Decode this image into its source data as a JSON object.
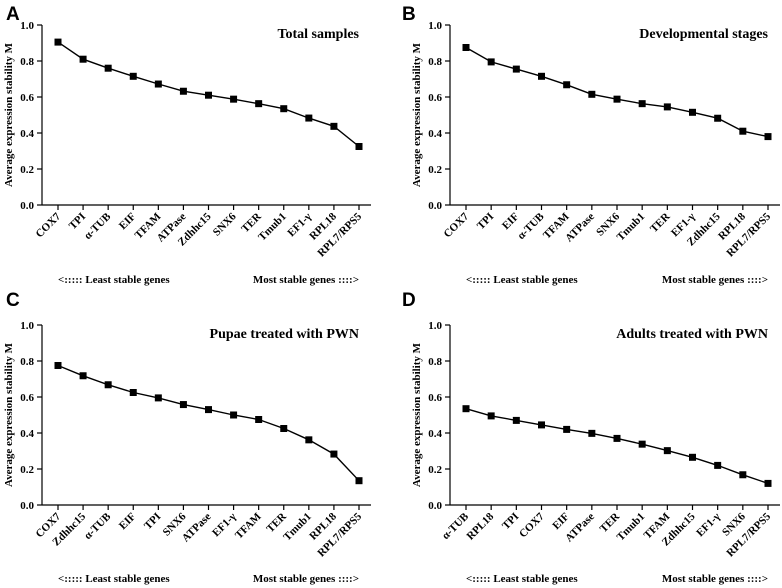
{
  "footer": {
    "least": "<::::: Least stable genes",
    "most": "Most stable genes ::::>"
  },
  "chart_data": [
    {
      "panel": "A",
      "type": "line",
      "title": "Total samples",
      "ylabel": "Average expression stability M",
      "xlabel": "",
      "ylim": [
        0,
        1.0
      ],
      "yticks": [
        "0.0",
        "0.2",
        "0.4",
        "0.6",
        "0.8",
        "1.0"
      ],
      "categories": [
        "COX7",
        "TPI",
        "α-TUB",
        "EIF",
        "TFAM",
        "ATPase",
        "Zdhhc15",
        "SNX6",
        "TER",
        "Tmub1",
        "EF1-γ",
        "RPL18",
        "RPL7/RPS5"
      ],
      "values": [
        0.905,
        0.81,
        0.76,
        0.715,
        0.672,
        0.632,
        0.61,
        0.588,
        0.563,
        0.535,
        0.483,
        0.437,
        0.325
      ]
    },
    {
      "panel": "B",
      "type": "line",
      "title": "Developmental stages",
      "ylabel": "Average expression stability M",
      "xlabel": "",
      "ylim": [
        0,
        1.0
      ],
      "yticks": [
        "0.0",
        "0.2",
        "0.4",
        "0.6",
        "0.8",
        "1.0"
      ],
      "categories": [
        "COX7",
        "TPI",
        "EIF",
        "α-TUB",
        "TFAM",
        "ATPase",
        "SNX6",
        "Tmub1",
        "TER",
        "EF1-γ",
        "Zdhhc15",
        "RPL18",
        "RPL7/RPS5"
      ],
      "values": [
        0.875,
        0.795,
        0.755,
        0.715,
        0.668,
        0.615,
        0.588,
        0.563,
        0.545,
        0.515,
        0.482,
        0.41,
        0.38
      ]
    },
    {
      "panel": "C",
      "type": "line",
      "title": "Pupae treated with PWN",
      "ylabel": "Average expression stability M",
      "xlabel": "",
      "ylim": [
        0,
        1.0
      ],
      "yticks": [
        "0.0",
        "0.2",
        "0.4",
        "0.6",
        "0.8",
        "1.0"
      ],
      "categories": [
        "COX7",
        "Zdhhc15",
        "α-TUB",
        "EIF",
        "TPI",
        "SNX6",
        "ATPase",
        "EF1-γ",
        "TFAM",
        "TER",
        "Tmub1",
        "RPL18",
        "RPL7/RPS5"
      ],
      "values": [
        0.775,
        0.718,
        0.668,
        0.625,
        0.595,
        0.558,
        0.53,
        0.5,
        0.475,
        0.425,
        0.362,
        0.283,
        0.135
      ]
    },
    {
      "panel": "D",
      "type": "line",
      "title": "Adults treated with PWN",
      "ylabel": "Average expression stability M",
      "xlabel": "",
      "ylim": [
        0,
        1.0
      ],
      "yticks": [
        "0.0",
        "0.2",
        "0.4",
        "0.6",
        "0.8",
        "1.0"
      ],
      "categories": [
        "α-TUB",
        "RPL18",
        "TPI",
        "COX7",
        "EIF",
        "ATPase",
        "TER",
        "Tmub1",
        "TFAM",
        "Zdhhc15",
        "EF1-γ",
        "SNX6",
        "RPL7/RPS5"
      ],
      "values": [
        0.535,
        0.495,
        0.47,
        0.445,
        0.42,
        0.398,
        0.37,
        0.338,
        0.302,
        0.265,
        0.22,
        0.168,
        0.12
      ]
    }
  ]
}
